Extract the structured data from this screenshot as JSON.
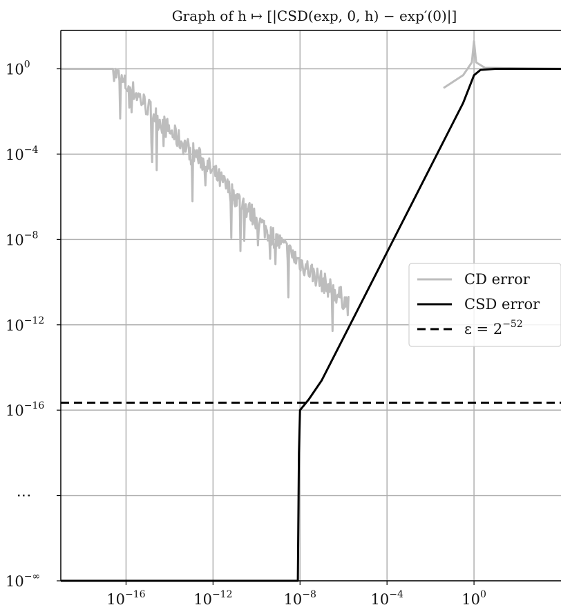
{
  "chart_data": {
    "type": "line",
    "title": "Graph of h ↦ [|CSD(exp, 0, h) − exp′(0)|]",
    "xlabel": "",
    "ylabel": "",
    "x_scale": "log10",
    "y_scale": "log10 (broken axis; bottom tick = 10^−∞)",
    "xlim": [
      "1e-19",
      "1e+4"
    ],
    "ylim": [
      "1e-∞",
      "1e+2"
    ],
    "grid": true,
    "legend_position": "center-right",
    "x_ticks": [
      {
        "label": "10",
        "exp": "−16",
        "log": -16
      },
      {
        "label": "10",
        "exp": "−12",
        "log": -12
      },
      {
        "label": "10",
        "exp": "−8",
        "log": -8
      },
      {
        "label": "10",
        "exp": "−4",
        "log": -4
      },
      {
        "label": "10",
        "exp": "0",
        "log": 0
      }
    ],
    "y_ticks": [
      {
        "label": "10",
        "exp": "0",
        "log": 0
      },
      {
        "label": "10",
        "exp": "−4",
        "log": -4
      },
      {
        "label": "10",
        "exp": "−8",
        "log": -8
      },
      {
        "label": "10",
        "exp": "−12",
        "log": -12
      },
      {
        "label": "10",
        "exp": "−16",
        "log": -16
      },
      {
        "label": "⋮",
        "exp": "",
        "log": -20
      },
      {
        "label": "10",
        "exp": "−∞",
        "log": -24
      }
    ],
    "series": [
      {
        "name": "CD error",
        "color": "#bdbdbd",
        "style": "solid",
        "points_log10": [
          [
            -19,
            0
          ],
          [
            -16.6,
            0
          ],
          [
            -16.2,
            -0.6
          ],
          [
            -15.5,
            -1.2
          ],
          [
            -14.5,
            -2.4
          ],
          [
            -13.5,
            -3.4
          ],
          [
            -12.5,
            -4.3
          ],
          [
            -11.5,
            -5.4
          ],
          [
            -10.5,
            -6.5
          ],
          [
            -9.5,
            -7.6
          ],
          [
            -8.5,
            -8.6
          ],
          [
            -7.5,
            -9.5
          ],
          [
            -6.5,
            -10.4
          ],
          [
            -6.0,
            -10.8
          ],
          [
            -5.7,
            -11.2
          ]
        ],
        "tail_log10": [
          [
            -1.4,
            -0.9
          ],
          [
            -0.5,
            -0.3
          ],
          [
            -0.1,
            0.3
          ],
          [
            0,
            1.3
          ],
          [
            0.1,
            0.3
          ],
          [
            0.5,
            0.05
          ],
          [
            4,
            0
          ]
        ]
      },
      {
        "name": "CSD error",
        "color": "#000000",
        "style": "solid",
        "points_log10": [
          [
            -19,
            -24
          ],
          [
            -8.1,
            -24
          ],
          [
            -8.05,
            -18
          ],
          [
            -8.0,
            -16.0
          ],
          [
            -7.6,
            -15.5
          ],
          [
            -7.0,
            -14.6
          ],
          [
            -6.0,
            -12.6
          ],
          [
            -5.0,
            -10.6
          ],
          [
            -4.0,
            -8.6
          ],
          [
            -3.0,
            -6.6
          ],
          [
            -2.0,
            -4.6
          ],
          [
            -1.0,
            -2.6
          ],
          [
            -0.5,
            -1.6
          ],
          [
            0.0,
            -0.3
          ],
          [
            0.3,
            -0.05
          ],
          [
            1.0,
            0
          ],
          [
            4,
            0
          ]
        ]
      },
      {
        "name": "ε = 2",
        "name_exp": "−52",
        "color": "#000000",
        "style": "dashed",
        "points_log10": [
          [
            -19,
            -15.65
          ],
          [
            4,
            -15.65
          ]
        ]
      }
    ]
  }
}
